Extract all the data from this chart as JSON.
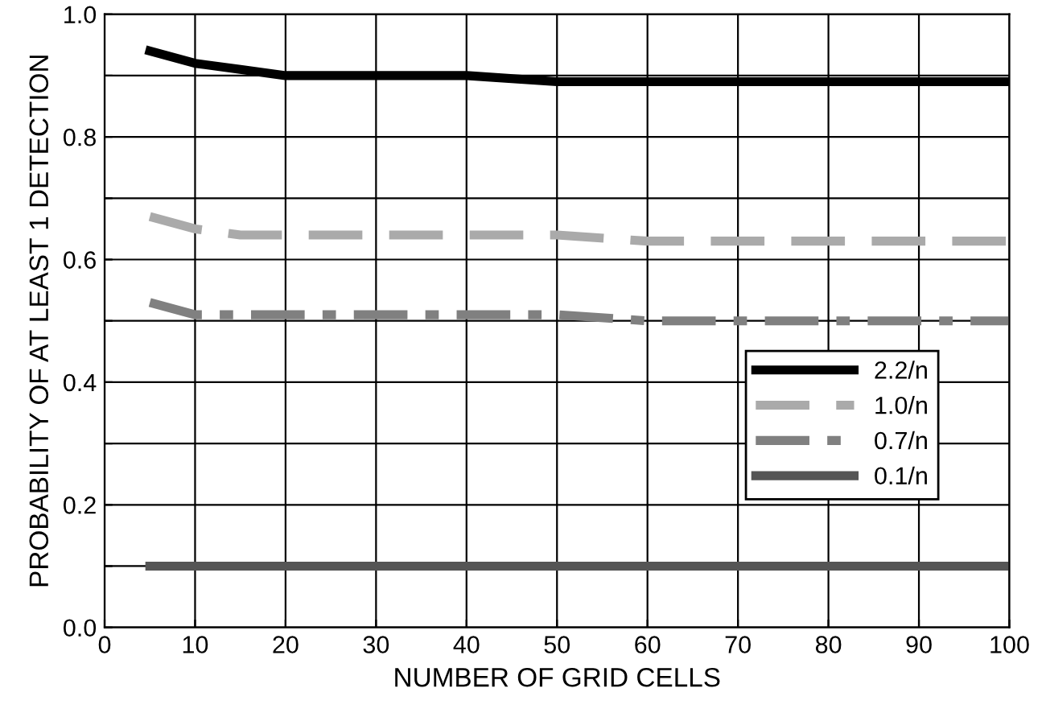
{
  "chart_data": {
    "type": "line",
    "xlabel": "NUMBER OF GRID CELLS",
    "ylabel": "PROBABILITY OF AT LEAST 1 DETECTION",
    "x": [
      5,
      10,
      15,
      20,
      30,
      40,
      50,
      60,
      70,
      80,
      90,
      100
    ],
    "series": [
      {
        "name": "2.2/n",
        "color": "#000000",
        "line_style": "solid",
        "values": [
          0.94,
          0.92,
          0.91,
          0.9,
          0.9,
          0.9,
          0.89,
          0.89,
          0.89,
          0.89,
          0.89,
          0.89
        ]
      },
      {
        "name": "1.0/n",
        "color": "#aaaaaa",
        "line_style": "dashed",
        "values": [
          0.67,
          0.65,
          0.64,
          0.64,
          0.64,
          0.64,
          0.64,
          0.63,
          0.63,
          0.63,
          0.63,
          0.63
        ]
      },
      {
        "name": "0.7/n",
        "color": "#808080",
        "line_style": "dashdot",
        "values": [
          0.53,
          0.51,
          0.51,
          0.51,
          0.51,
          0.51,
          0.51,
          0.5,
          0.5,
          0.5,
          0.5,
          0.5
        ]
      },
      {
        "name": "0.1/n",
        "color": "#555555",
        "line_style": "solid",
        "values": [
          0.1,
          0.1,
          0.1,
          0.1,
          0.1,
          0.1,
          0.1,
          0.1,
          0.1,
          0.1,
          0.1,
          0.1
        ]
      }
    ],
    "xlim": [
      0,
      100
    ],
    "xticks": [
      0,
      10,
      20,
      30,
      40,
      50,
      60,
      70,
      80,
      90,
      100
    ],
    "ylim": [
      0,
      1
    ],
    "yticks": [
      {
        "value": 0,
        "label": "0.0"
      },
      {
        "value": 0.1,
        "label": null
      },
      {
        "value": 0.2,
        "label": "0.2"
      },
      {
        "value": 0.3,
        "label": null
      },
      {
        "value": 0.4,
        "label": "0.4"
      },
      {
        "value": 0.5,
        "label": null
      },
      {
        "value": 0.6,
        "label": "0.6"
      },
      {
        "value": 0.7,
        "label": null
      },
      {
        "value": 0.8,
        "label": "0.8"
      },
      {
        "value": 0.9,
        "label": null
      },
      {
        "value": 1.0,
        "label": "1.0"
      }
    ],
    "grid": true,
    "legend": "right",
    "marker": "none"
  }
}
